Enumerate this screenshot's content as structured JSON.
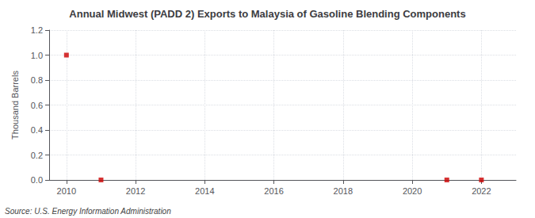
{
  "chart_data": {
    "type": "scatter",
    "title": "Annual Midwest (PADD 2) Exports to Malaysia of Gasoline Blending Components",
    "ylabel": "Thousand Barrels",
    "annotations": [
      "Source: U.S. Energy Information Administration"
    ],
    "x": [
      2010,
      2011,
      2021,
      2022
    ],
    "values": [
      1.0,
      0.0,
      0.0,
      0.0
    ],
    "color": "#cc0000",
    "marker": "square",
    "xlim": [
      2009.5,
      2023.0
    ],
    "ylim": [
      0.0,
      1.2
    ],
    "xticks": [
      2010,
      2012,
      2014,
      2016,
      2018,
      2020,
      2022
    ],
    "yticks": [
      {
        "value": 0.0,
        "label": "0.0"
      },
      0.2,
      0.4,
      0.6,
      0.8,
      {
        "value": 1.0,
        "label": "1.0"
      },
      1.2
    ],
    "grid": true
  }
}
